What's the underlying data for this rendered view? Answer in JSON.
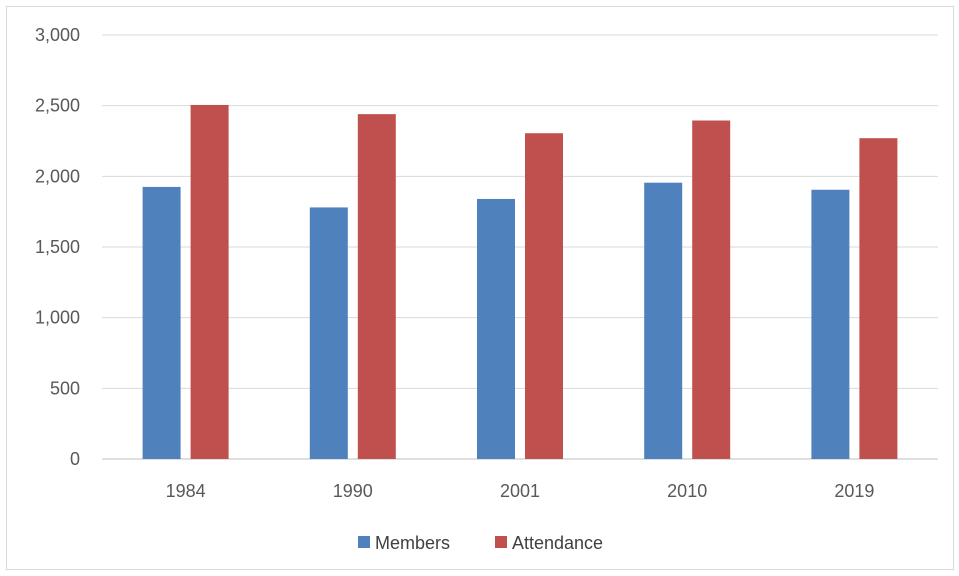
{
  "chart_data": {
    "type": "bar",
    "categories": [
      "1984",
      "1990",
      "2001",
      "2010",
      "2019"
    ],
    "series": [
      {
        "name": "Members",
        "color": "#4f81bd",
        "values": [
          1925,
          1780,
          1840,
          1955,
          1905
        ]
      },
      {
        "name": "Attendance",
        "color": "#c0504d",
        "values": [
          2505,
          2440,
          2305,
          2395,
          2270
        ]
      }
    ],
    "title": "",
    "xlabel": "",
    "ylabel": "",
    "ylim": [
      0,
      3000
    ],
    "yticks": [
      "0",
      "500",
      "1,000",
      "1,500",
      "2,000",
      "2,500",
      "3,000"
    ],
    "ytick_values": [
      0,
      500,
      1000,
      1500,
      2000,
      2500,
      3000
    ],
    "grid": true,
    "legend_position": "bottom"
  }
}
